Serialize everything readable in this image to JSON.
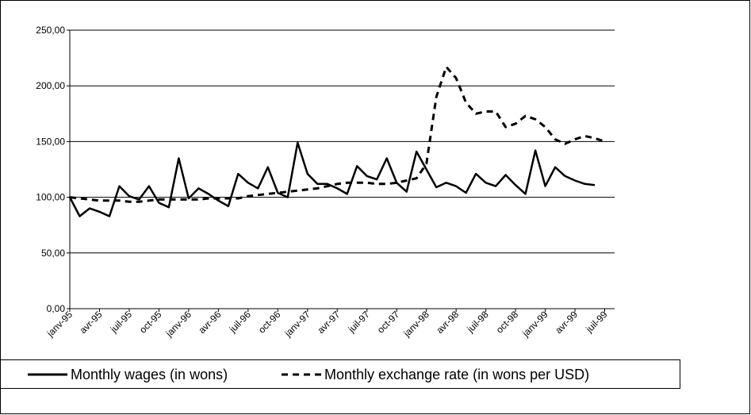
{
  "chart_data": {
    "type": "line",
    "categories": [
      "janv-95",
      null,
      null,
      "avr-95",
      null,
      null,
      "juil-95",
      null,
      null,
      "oct-95",
      null,
      null,
      "janv-96",
      null,
      null,
      "avr-96",
      null,
      null,
      "juil-96",
      null,
      null,
      "oct-96",
      null,
      null,
      "janv-97",
      null,
      null,
      "avr-97",
      null,
      null,
      "juil-97",
      null,
      null,
      "oct-97",
      null,
      null,
      "janv-98",
      null,
      null,
      "avr-98",
      null,
      null,
      "juil-98",
      null,
      null,
      "oct-98",
      null,
      null,
      "janv-99",
      null,
      null,
      "avr-99",
      null,
      null,
      "juil-99"
    ],
    "series": [
      {
        "name": "Monthly wages (in wons)",
        "color": "#000000",
        "style": "solid",
        "values": [
          100,
          83,
          90,
          87,
          83,
          110,
          101,
          98,
          110,
          95,
          91,
          135,
          99,
          108,
          103,
          97,
          92,
          121,
          113,
          108,
          127,
          104,
          100,
          149,
          121,
          112,
          112,
          108,
          103,
          128,
          119,
          116,
          135,
          113,
          105,
          141,
          125,
          109,
          113,
          110,
          104,
          121,
          113,
          110,
          120,
          111,
          103,
          142,
          110,
          127,
          119,
          115,
          112,
          111,
          null
        ]
      },
      {
        "name": "Monthly exchange rate (in wons per USD)",
        "color": "#000000",
        "style": "dashed",
        "values": [
          100,
          99,
          98,
          97,
          97,
          97,
          96,
          96,
          97,
          98,
          98,
          98,
          98,
          98,
          99,
          99,
          99,
          99,
          101,
          102,
          103,
          104,
          105,
          106,
          107,
          108,
          110,
          112,
          113,
          113,
          113,
          112,
          112,
          113,
          115,
          117,
          130,
          190,
          217,
          207,
          185,
          175,
          177,
          177,
          163,
          166,
          173,
          170,
          163,
          152,
          148,
          152,
          155,
          153,
          150
        ]
      }
    ],
    "ylim": [
      0,
      250
    ],
    "yticks": [
      {
        "value": 0,
        "label": "0,00"
      },
      {
        "value": 50,
        "label": "50,00"
      },
      {
        "value": 100,
        "label": "100,00"
      },
      {
        "value": 150,
        "label": "150,00"
      },
      {
        "value": 200,
        "label": "200,00"
      },
      {
        "value": 250,
        "label": "250,00"
      }
    ],
    "grid": true,
    "legend": "bottom"
  }
}
